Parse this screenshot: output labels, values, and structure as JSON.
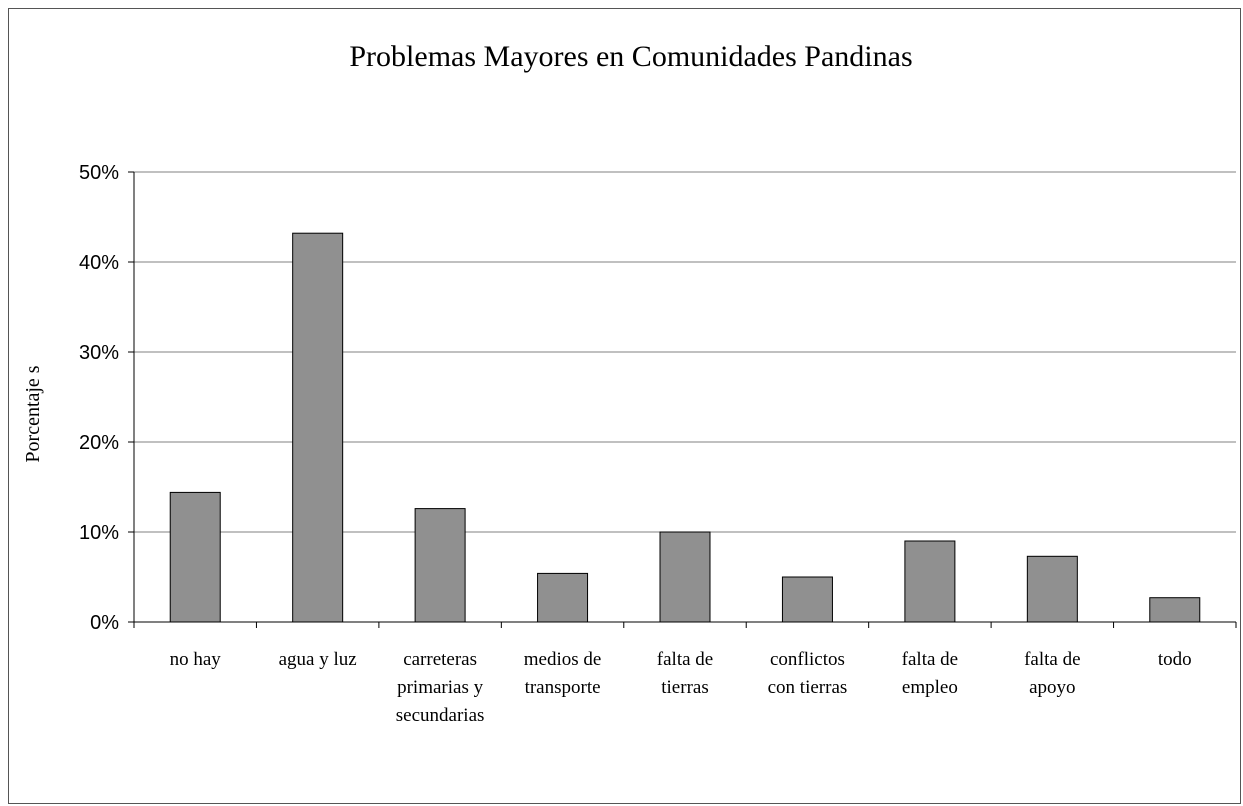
{
  "chart_data": {
    "type": "bar",
    "title": "Problemas Mayores en Comunidades Pandinas",
    "xlabel": "",
    "ylabel": "Porcentaje s",
    "ylim": [
      0,
      50
    ],
    "yticks": [
      "0%",
      "10%",
      "20%",
      "30%",
      "40%",
      "50%"
    ],
    "grid": true,
    "legend": "none",
    "bar_color": "#909090",
    "categories": [
      [
        "no hay"
      ],
      [
        "agua y luz"
      ],
      [
        "carreteras",
        "primarias y",
        "secundarias"
      ],
      [
        "medios de",
        "transporte"
      ],
      [
        "falta de",
        "tierras"
      ],
      [
        "conflictos",
        "con tierras"
      ],
      [
        "falta de",
        "empleo"
      ],
      [
        "falta de",
        "apoyo"
      ],
      [
        "todo"
      ]
    ],
    "values": [
      14.4,
      43.2,
      12.6,
      5.4,
      10.0,
      5.0,
      9.0,
      7.3,
      2.7
    ]
  }
}
